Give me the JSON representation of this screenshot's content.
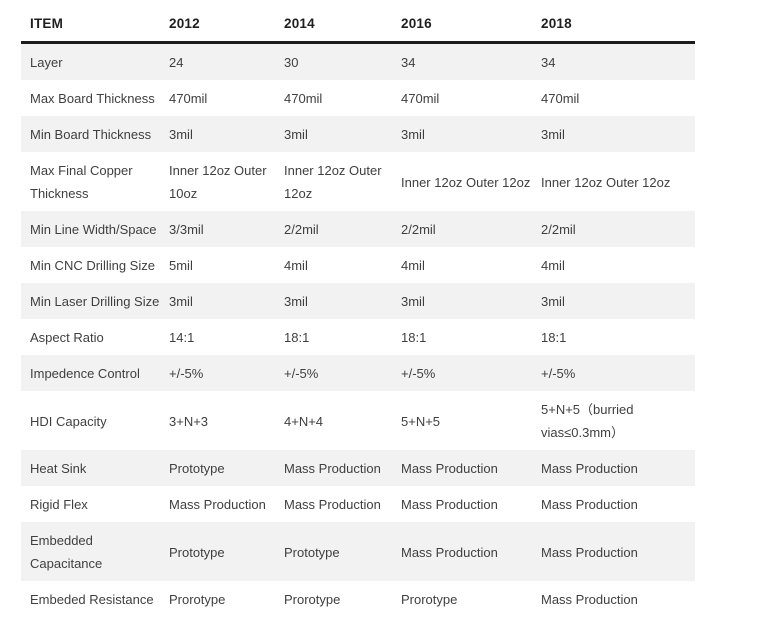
{
  "page": {
    "background_color": "#ffffff",
    "bottom_strip_color": "#dbe2f4"
  },
  "chart_data": {
    "type": "table",
    "columns": [
      "ITEM",
      "2012",
      "2014",
      "2016",
      "2018"
    ],
    "rows": [
      {
        "item": "Layer",
        "values": [
          "24",
          "30",
          "34",
          "34"
        ]
      },
      {
        "item": "Max Board Thickness",
        "values": [
          "470mil",
          "470mil",
          "470mil",
          "470mil"
        ]
      },
      {
        "item": "Min Board Thickness",
        "values": [
          "3mil",
          "3mil",
          "3mil",
          "3mil"
        ]
      },
      {
        "item": "Max Final Copper Thickness",
        "values": [
          "Inner 12oz Outer 10oz",
          "Inner 12oz Outer 12oz",
          "Inner 12oz Outer 12oz",
          "Inner 12oz Outer 12oz"
        ]
      },
      {
        "item": "Min Line Width/Space",
        "values": [
          "3/3mil",
          "2/2mil",
          "2/2mil",
          "2/2mil"
        ]
      },
      {
        "item": "Min CNC Drilling Size",
        "values": [
          "5mil",
          "4mil",
          "4mil",
          "4mil"
        ]
      },
      {
        "item": "Min Laser Drilling Size",
        "values": [
          "3mil",
          "3mil",
          "3mil",
          "3mil"
        ]
      },
      {
        "item": "Aspect Ratio",
        "values": [
          "14:1",
          "18:1",
          "18:1",
          "18:1"
        ]
      },
      {
        "item": "Impedence Control",
        "values": [
          "+/-5%",
          "+/-5%",
          "+/-5%",
          "+/-5%"
        ]
      },
      {
        "item": "HDI Capacity",
        "values": [
          "3+N+3",
          "4+N+4",
          "5+N+5",
          "5+N+5（burried vias≤0.3mm）"
        ]
      },
      {
        "item": "Heat Sink",
        "values": [
          "Prototype",
          "Mass Production",
          "Mass Production",
          "Mass Production"
        ]
      },
      {
        "item": "Rigid Flex",
        "values": [
          "Mass Production",
          "Mass Production",
          "Mass Production",
          "Mass Production"
        ]
      },
      {
        "item": "Embedded Capacitance",
        "values": [
          "Prototype",
          "Prototype",
          "Mass Production",
          "Mass Production"
        ]
      },
      {
        "item": "Embeded Resistance",
        "values": [
          "Prorotype",
          "Prorotype",
          "Prorotype",
          "Mass Production"
        ]
      }
    ],
    "layout": {
      "zebra_stripe_color": "#f2f2f2",
      "header_rule_color": "#1c1c1c",
      "header_text_color": "#1f1f1f",
      "body_text_color": "#3f3f3f",
      "grid": "none",
      "stripe_pattern": "odd-rows-shaded",
      "text_align": "left"
    }
  }
}
